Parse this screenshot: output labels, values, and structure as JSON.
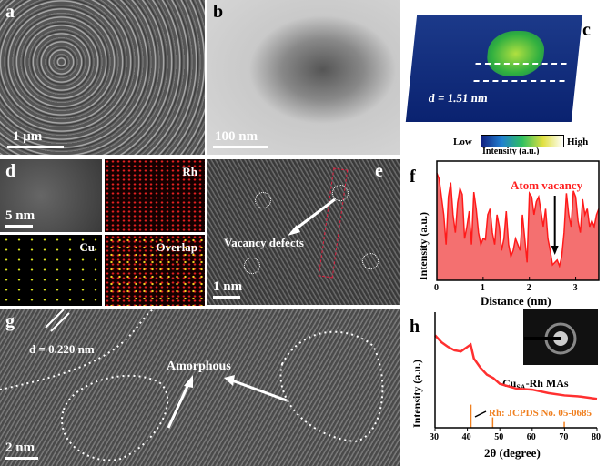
{
  "panels": {
    "a": {
      "label": "a",
      "scale": "1 μm"
    },
    "b": {
      "label": "b",
      "scale": "100 nm"
    },
    "c": {
      "label": "c",
      "distance": "d = 1.51 nm",
      "cbar_low": "Low",
      "cbar_high": "High",
      "cbar_title": "Intensity (a.u.)"
    },
    "d": {
      "label": "d",
      "scale": "5 nm",
      "rh": "Rh",
      "cu": "Cu",
      "overlap": "Overlap"
    },
    "e": {
      "label": "e",
      "scale": "1 nm",
      "annotation": "Vacancy defects"
    },
    "g": {
      "label": "g",
      "scale": "2 nm",
      "d_spacing": "d = 0.220 nm",
      "annotation": "Amorphous"
    },
    "f": {
      "label": "f"
    },
    "h": {
      "label": "h"
    }
  },
  "colors": {
    "profile": "#ff1a1a",
    "fill": "#f47070",
    "xrd": "#ff3030",
    "ref": "#f08020"
  },
  "chart_data": [
    {
      "type": "area",
      "title": "",
      "xlabel": "Distance (nm)",
      "ylabel": "Intensity (a.u.)",
      "xlim": [
        0,
        3.5
      ],
      "ylim": [
        0,
        1
      ],
      "xticks": [
        "0",
        "1",
        "2",
        "3"
      ],
      "annotation": "Atom vacancy",
      "vacancy_x": 2.55,
      "x": [
        0,
        0.05,
        0.1,
        0.15,
        0.2,
        0.25,
        0.3,
        0.35,
        0.4,
        0.45,
        0.5,
        0.55,
        0.6,
        0.65,
        0.7,
        0.75,
        0.8,
        0.85,
        0.9,
        0.95,
        1.0,
        1.05,
        1.1,
        1.15,
        1.2,
        1.25,
        1.3,
        1.35,
        1.4,
        1.45,
        1.5,
        1.55,
        1.6,
        1.65,
        1.7,
        1.75,
        1.8,
        1.85,
        1.9,
        1.95,
        2.0,
        2.05,
        2.1,
        2.15,
        2.2,
        2.25,
        2.3,
        2.35,
        2.4,
        2.45,
        2.5,
        2.55,
        2.6,
        2.65,
        2.7,
        2.75,
        2.8,
        2.85,
        2.9,
        2.95,
        3.0,
        3.05,
        3.1,
        3.15,
        3.2,
        3.25,
        3.3,
        3.35,
        3.4,
        3.45,
        3.5
      ],
      "y": [
        0.9,
        0.85,
        0.7,
        0.55,
        0.3,
        0.7,
        0.82,
        0.55,
        0.4,
        0.65,
        0.77,
        0.72,
        0.35,
        0.45,
        0.58,
        0.3,
        0.74,
        0.6,
        0.4,
        0.3,
        0.35,
        0.34,
        0.55,
        0.6,
        0.4,
        0.3,
        0.55,
        0.45,
        0.25,
        0.35,
        0.58,
        0.3,
        0.2,
        0.25,
        0.35,
        0.3,
        0.25,
        0.55,
        0.35,
        0.15,
        0.73,
        0.7,
        0.55,
        0.66,
        0.7,
        0.58,
        0.45,
        0.6,
        0.35,
        0.25,
        0.13,
        0.15,
        0.17,
        0.12,
        0.2,
        0.4,
        0.73,
        0.55,
        0.45,
        0.75,
        0.7,
        0.5,
        0.4,
        0.68,
        0.55,
        0.6,
        0.45,
        0.5,
        0.45,
        0.55,
        0.6
      ]
    },
    {
      "type": "line",
      "xlabel": "2θ (degree)",
      "ylabel": "Intensity (a.u.)",
      "xlim": [
        30,
        80
      ],
      "ylim": [
        0,
        1
      ],
      "xticks": [
        "30",
        "40",
        "50",
        "60",
        "70",
        "80"
      ],
      "series_label": "CuSA-Rh MAs",
      "series_label_main": "Cu",
      "series_label_sub": "SA",
      "series_label_rest": "-Rh MAs",
      "reference_label": "Rh: JCPDS No. 05-0685",
      "x": [
        30,
        32,
        34,
        36,
        38,
        40,
        41,
        42,
        44,
        46,
        48,
        50,
        55,
        60,
        65,
        70,
        75,
        80
      ],
      "y": [
        0.8,
        0.74,
        0.7,
        0.67,
        0.66,
        0.7,
        0.72,
        0.6,
        0.52,
        0.46,
        0.43,
        0.38,
        0.34,
        0.33,
        0.3,
        0.28,
        0.27,
        0.25
      ],
      "reference_peaks": [
        {
          "x": 41.1,
          "h": 0.2
        },
        {
          "x": 47.8,
          "h": 0.09
        },
        {
          "x": 69.9,
          "h": 0.05
        }
      ]
    }
  ]
}
